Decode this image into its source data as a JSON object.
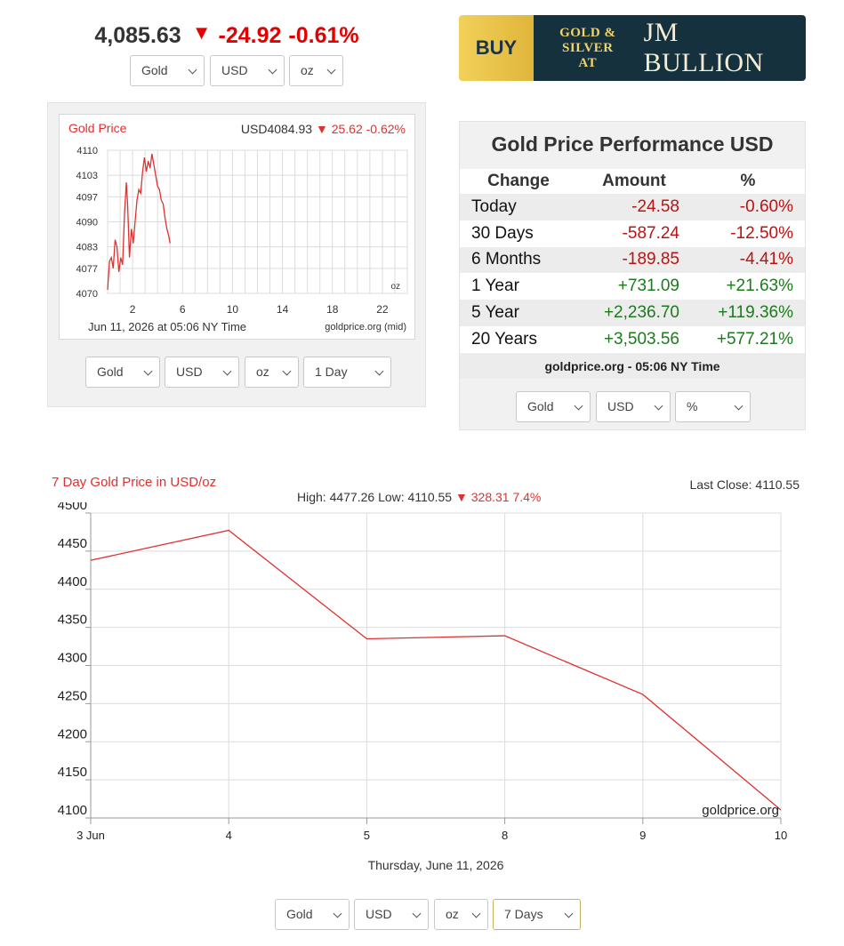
{
  "ticker": {
    "price": "4,085.63",
    "change": "-24.92",
    "percent": "-0.61%"
  },
  "ticker_selects": [
    "Gold",
    "USD",
    "oz"
  ],
  "banner": {
    "buy": "BUY",
    "line1": "GOLD &",
    "line2": "SILVER AT",
    "brand": "JM BULLION"
  },
  "small_chart": {
    "title": "Gold Price",
    "quote_prefix": "USD4084.93",
    "quote_change": "25.62 -0.62%",
    "footer": "Jun 11, 2026 at 05:06 NY Time",
    "source": "goldprice.org (mid)",
    "unit": "oz",
    "selects": [
      "Gold",
      "USD",
      "oz",
      "1 Day"
    ]
  },
  "performance": {
    "title": "Gold Price Performance USD",
    "headers": [
      "Change",
      "Amount",
      "%"
    ],
    "rows": [
      {
        "label": "Today",
        "amount": "-24.58",
        "pct": "-0.60%",
        "dir": "neg"
      },
      {
        "label": "30 Days",
        "amount": "-587.24",
        "pct": "-12.50%",
        "dir": "neg"
      },
      {
        "label": "6 Months",
        "amount": "-189.85",
        "pct": "-4.41%",
        "dir": "neg"
      },
      {
        "label": "1 Year",
        "amount": "+731.09",
        "pct": "+21.63%",
        "dir": "pos"
      },
      {
        "label": "5 Year",
        "amount": "+2,236.70",
        "pct": "+119.36%",
        "dir": "pos"
      },
      {
        "label": "20 Years",
        "amount": "+3,503.56",
        "pct": "+577.21%",
        "dir": "pos"
      }
    ],
    "source": "goldprice.org - 05:06 NY Time",
    "selects": [
      "Gold",
      "USD",
      "%"
    ]
  },
  "big_chart": {
    "title": "7 Day Gold Price in USD/oz",
    "last_close": "Last Close: 4110.55",
    "high_low": "High: 4477.26 Low: 4110.55",
    "change": "328.31 7.4%",
    "source": "goldprice.org",
    "date_label": "Thursday, June 11, 2026",
    "selects": [
      "Gold",
      "USD",
      "oz",
      "7 Days"
    ]
  },
  "chart_data": [
    {
      "type": "line",
      "title": "Gold Price",
      "x_ticks": [
        2,
        6,
        10,
        14,
        18,
        22
      ],
      "xlim": [
        0,
        24
      ],
      "y_ticks": [
        4070,
        4077,
        4083,
        4090,
        4097,
        4103,
        4110
      ],
      "ylim": [
        4070,
        4110
      ],
      "grid": true,
      "color": "#e03030",
      "x": [
        0.0,
        0.15,
        0.3,
        0.45,
        0.6,
        0.75,
        0.9,
        1.05,
        1.2,
        1.35,
        1.5,
        1.6,
        1.75,
        1.9,
        2.05,
        2.2,
        2.35,
        2.5,
        2.65,
        2.8,
        2.95,
        3.1,
        3.25,
        3.4,
        3.55,
        3.7,
        3.85,
        4.0,
        4.15,
        4.3,
        4.45,
        4.6,
        4.75,
        4.9,
        5.0
      ],
      "y": [
        4071,
        4079,
        4080,
        4077,
        4085,
        4083,
        4076,
        4080,
        4078,
        4092,
        4101,
        4095,
        4080,
        4088,
        4084,
        4090,
        4096,
        4099,
        4098,
        4104,
        4108,
        4104,
        4107,
        4105,
        4109,
        4106,
        4103,
        4100,
        4099,
        4096,
        4095,
        4091,
        4088,
        4086,
        4084
      ]
    },
    {
      "type": "line",
      "title": "7 Day Gold Price in USD/oz",
      "categories": [
        "3 Jun",
        "4",
        "5",
        "8",
        "9",
        "10"
      ],
      "values": [
        4438,
        4477.26,
        4335,
        4339,
        4262,
        4110.55
      ],
      "ylim": [
        4100,
        4500
      ],
      "y_ticks": [
        4100,
        4150,
        4200,
        4250,
        4300,
        4350,
        4400,
        4450,
        4500
      ],
      "grid": true,
      "color": "#e03030"
    }
  ]
}
